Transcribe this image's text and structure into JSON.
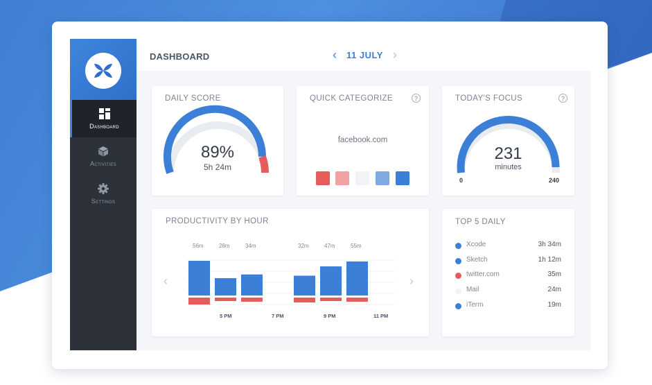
{
  "colors": {
    "accent": "#3b7fd7",
    "negative": "#e65c5c",
    "sidebar": "#2c313a"
  },
  "sidebar": {
    "items": [
      {
        "label": "Dashboard",
        "icon": "dashboard-grid-icon",
        "active": true
      },
      {
        "label": "Activities",
        "icon": "cube-icon",
        "active": false
      },
      {
        "label": "Settings",
        "icon": "gear-icon",
        "active": false
      }
    ]
  },
  "header": {
    "title": "DASHBOARD",
    "date": "11 JULY",
    "prev_icon": "chevron-left-icon",
    "next_icon": "chevron-right-icon"
  },
  "daily_score": {
    "title": "DAILY SCORE",
    "value": "89%",
    "sub": "5h 24m",
    "fraction": 0.89
  },
  "quick_categorize": {
    "title": "QUICK CATEGORIZE",
    "site": "facebook.com",
    "swatches": [
      "#e65c5c",
      "#f0a1a1",
      "#f2f3f7",
      "#7fa9e3",
      "#3b7fd7"
    ]
  },
  "todays_focus": {
    "title": "TODAY'S FOCUS",
    "value": "231",
    "unit": "minutes",
    "min_label": "0",
    "max_label": "240",
    "min": 0,
    "max": 240,
    "current": 231
  },
  "productivity": {
    "title": "PRODUCTIVITY BY HOUR",
    "bars": [
      {
        "label": "56m",
        "productive": 56,
        "distracting": 10
      },
      {
        "label": "28m",
        "productive": 28,
        "distracting": 5
      },
      {
        "label": "34m",
        "productive": 34,
        "distracting": 6
      },
      {
        "label": "",
        "productive": 0,
        "distracting": 0
      },
      {
        "label": "32m",
        "productive": 32,
        "distracting": 7
      },
      {
        "label": "47m",
        "productive": 47,
        "distracting": 5
      },
      {
        "label": "55m",
        "productive": 55,
        "distracting": 6
      }
    ],
    "time_labels": [
      "5 PM",
      "7 PM",
      "9 PM",
      "11 PM"
    ]
  },
  "top5": {
    "title": "TOP 5 DAILY",
    "items": [
      {
        "name": "Xcode",
        "time": "3h 34m",
        "color": "#3b7fd7"
      },
      {
        "name": "Sketch",
        "time": "1h 12m",
        "color": "#3b7fd7"
      },
      {
        "name": "twitter.com",
        "time": "35m",
        "color": "#e65c5c"
      },
      {
        "name": "Mail",
        "time": "24m",
        "color": "#f2f3f7"
      },
      {
        "name": "iTerm",
        "time": "19m",
        "color": "#3b7fd7"
      }
    ]
  }
}
